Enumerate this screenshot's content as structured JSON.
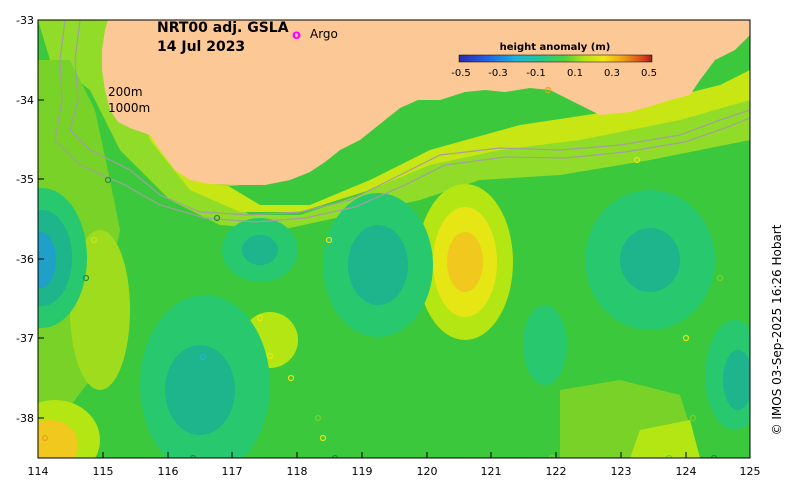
{
  "title_line1": "NRT00 adj. GSLA",
  "title_line2": "14 Jul 2023",
  "legend": {
    "marker_symbol": "o",
    "label": "Argo",
    "marker_color": "#ff00ff"
  },
  "contours": {
    "label_200": "200m",
    "label_1000": "1000m"
  },
  "colorbar": {
    "title": "height anomaly (m)",
    "ticks": [
      "-0.5",
      "-0.3",
      "-0.1",
      "0.1",
      "0.3",
      "0.5"
    ]
  },
  "axes": {
    "x_ticks": [
      "114",
      "115",
      "116",
      "117",
      "118",
      "119",
      "120",
      "121",
      "122",
      "123",
      "124",
      "125"
    ],
    "y_ticks": [
      "-33",
      "-34",
      "-35",
      "-36",
      "-37",
      "-38"
    ]
  },
  "credit": "© IMOS 03-Sep-2025 16:26 Hobart",
  "colors": {
    "land": "#fcc896",
    "base_field": "#3cc83c",
    "coast_contour": "#a0a0a0",
    "frame": "#000000"
  }
}
